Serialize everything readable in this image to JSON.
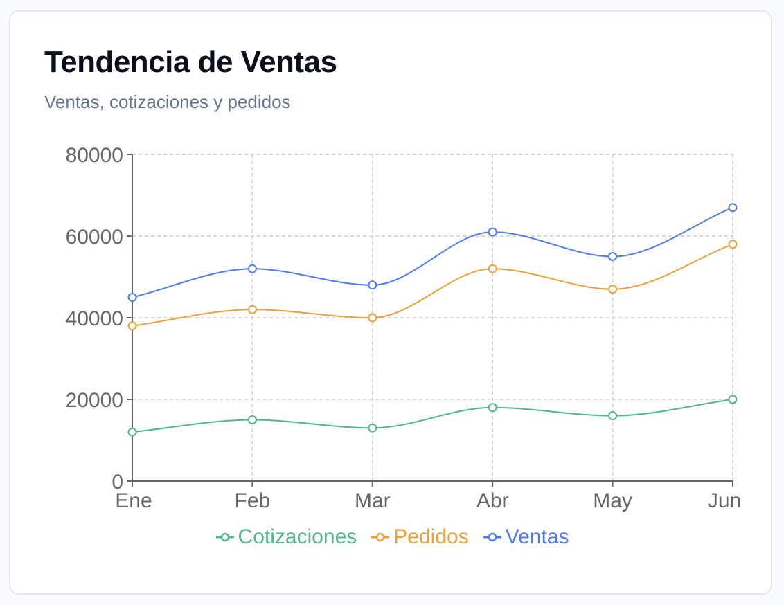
{
  "card": {
    "title": "Tendencia de Ventas",
    "subtitle": "Ventas, cotizaciones y pedidos"
  },
  "colors": {
    "Cotizaciones": "#52b788",
    "Pedidos": "#e9a23b",
    "Ventas": "#4f7de9",
    "grid": "#cccccc",
    "axis": "#666666"
  },
  "chart_data": {
    "type": "line",
    "categories": [
      "Ene",
      "Feb",
      "Mar",
      "Abr",
      "May",
      "Jun"
    ],
    "ylim": [
      0,
      80000
    ],
    "yticks": [
      "0",
      "20000",
      "40000",
      "60000",
      "80000"
    ],
    "grid": true,
    "legend_position": "bottom",
    "curve": "smooth",
    "series": [
      {
        "name": "Ventas",
        "values": [
          45000,
          52000,
          48000,
          61000,
          55000,
          67000
        ]
      },
      {
        "name": "Pedidos",
        "values": [
          38000,
          42000,
          40000,
          52000,
          47000,
          58000
        ]
      },
      {
        "name": "Cotizaciones",
        "values": [
          12000,
          15000,
          13000,
          18000,
          16000,
          20000
        ]
      }
    ],
    "legend": [
      "Cotizaciones",
      "Pedidos",
      "Ventas"
    ]
  }
}
